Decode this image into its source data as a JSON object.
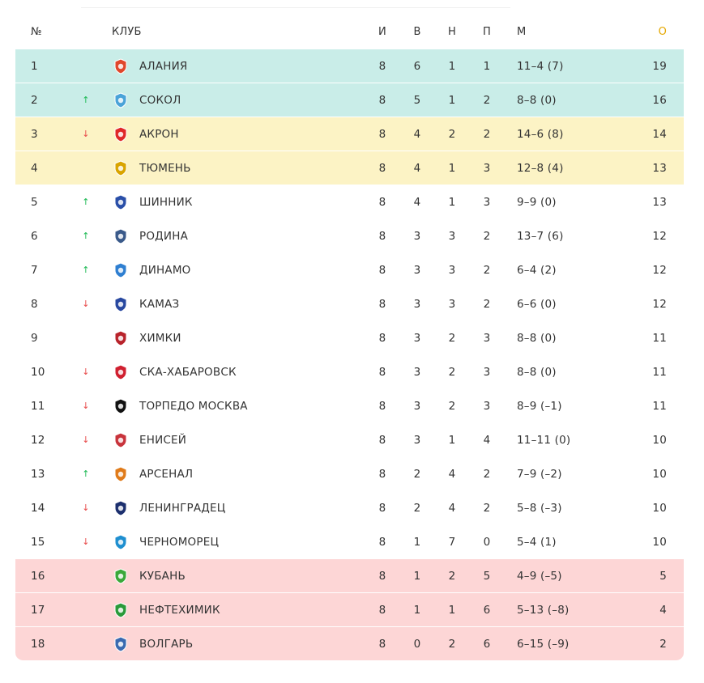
{
  "header": {
    "pos": "№",
    "club": "КЛУБ",
    "games": "И",
    "wins": "В",
    "draws": "Н",
    "losses": "П",
    "goals": "М",
    "points": "О"
  },
  "rows": [
    {
      "pos": "1",
      "arrow": "",
      "club": "Алания",
      "i": "8",
      "w": "6",
      "d": "1",
      "l": "1",
      "m": "11–4 (7)",
      "pts": "19",
      "zone": "green",
      "logo": "alania-logo",
      "color": "#e0472c"
    },
    {
      "pos": "2",
      "arrow": "↑",
      "club": "Сокол",
      "i": "8",
      "w": "5",
      "d": "1",
      "l": "2",
      "m": "8–8 (0)",
      "pts": "16",
      "zone": "green",
      "logo": "sokol-logo",
      "color": "#4aa3d8"
    },
    {
      "pos": "3",
      "arrow": "↓",
      "club": "Акрон",
      "i": "8",
      "w": "4",
      "d": "2",
      "l": "2",
      "m": "14–6 (8)",
      "pts": "14",
      "zone": "yellow",
      "logo": "akron-logo",
      "color": "#e02828"
    },
    {
      "pos": "4",
      "arrow": "",
      "club": "Тюмень",
      "i": "8",
      "w": "4",
      "d": "1",
      "l": "3",
      "m": "12–8 (4)",
      "pts": "13",
      "zone": "yellow",
      "logo": "tyumen-logo",
      "color": "#d9a400"
    },
    {
      "pos": "5",
      "arrow": "↑",
      "club": "Шинник",
      "i": "8",
      "w": "4",
      "d": "1",
      "l": "3",
      "m": "9–9 (0)",
      "pts": "13",
      "zone": "",
      "logo": "shinnik-logo",
      "color": "#2a4fa8"
    },
    {
      "pos": "6",
      "arrow": "↑",
      "club": "Родина",
      "i": "8",
      "w": "3",
      "d": "3",
      "l": "2",
      "m": "13–7 (6)",
      "pts": "12",
      "zone": "",
      "logo": "rodina-logo",
      "color": "#3a5a8a"
    },
    {
      "pos": "7",
      "arrow": "↑",
      "club": "Динамо",
      "i": "8",
      "w": "3",
      "d": "3",
      "l": "2",
      "m": "6–4 (2)",
      "pts": "12",
      "zone": "",
      "logo": "dinamo-logo",
      "color": "#2f7fd1"
    },
    {
      "pos": "8",
      "arrow": "↓",
      "club": "Камаз",
      "i": "8",
      "w": "3",
      "d": "3",
      "l": "2",
      "m": "6–6 (0)",
      "pts": "12",
      "zone": "",
      "logo": "kamaz-logo",
      "color": "#2848a0"
    },
    {
      "pos": "9",
      "arrow": "",
      "club": "Химки",
      "i": "8",
      "w": "3",
      "d": "2",
      "l": "3",
      "m": "8–8 (0)",
      "pts": "11",
      "zone": "",
      "logo": "khimki-logo",
      "color": "#b8232b"
    },
    {
      "pos": "10",
      "arrow": "↓",
      "club": "СКА-Хабаровск",
      "i": "8",
      "w": "3",
      "d": "2",
      "l": "3",
      "m": "8–8 (0)",
      "pts": "11",
      "zone": "",
      "logo": "ska-logo",
      "color": "#d02030"
    },
    {
      "pos": "11",
      "arrow": "↓",
      "club": "Торпедо Москва",
      "i": "8",
      "w": "3",
      "d": "2",
      "l": "3",
      "m": "8–9 (–1)",
      "pts": "11",
      "zone": "",
      "logo": "torpedo-logo",
      "color": "#111111"
    },
    {
      "pos": "12",
      "arrow": "↓",
      "club": "Енисей",
      "i": "8",
      "w": "3",
      "d": "1",
      "l": "4",
      "m": "11–11 (0)",
      "pts": "10",
      "zone": "",
      "logo": "yenisey-logo",
      "color": "#c8343c"
    },
    {
      "pos": "13",
      "arrow": "↑",
      "club": "Арсенал",
      "i": "8",
      "w": "2",
      "d": "4",
      "l": "2",
      "m": "7–9 (–2)",
      "pts": "10",
      "zone": "",
      "logo": "arsenal-logo",
      "color": "#e07b1a"
    },
    {
      "pos": "14",
      "arrow": "↓",
      "club": "Ленинградец",
      "i": "8",
      "w": "2",
      "d": "4",
      "l": "2",
      "m": "5–8 (–3)",
      "pts": "10",
      "zone": "",
      "logo": "leningradets-logo",
      "color": "#1c2f6e"
    },
    {
      "pos": "15",
      "arrow": "↓",
      "club": "Черноморец",
      "i": "8",
      "w": "1",
      "d": "7",
      "l": "0",
      "m": "5–4 (1)",
      "pts": "10",
      "zone": "",
      "logo": "chernomorets-logo",
      "color": "#1f8fd0"
    },
    {
      "pos": "16",
      "arrow": "",
      "club": "Кубань",
      "i": "8",
      "w": "1",
      "d": "2",
      "l": "5",
      "m": "4–9 (–5)",
      "pts": "5",
      "zone": "red",
      "logo": "kuban-logo",
      "color": "#3aa83a"
    },
    {
      "pos": "17",
      "arrow": "",
      "club": "Нефтехимик",
      "i": "8",
      "w": "1",
      "d": "1",
      "l": "6",
      "m": "5–13 (–8)",
      "pts": "4",
      "zone": "red",
      "logo": "neftekhimik-logo",
      "color": "#2a9a3a"
    },
    {
      "pos": "18",
      "arrow": "",
      "club": "Волгарь",
      "i": "8",
      "w": "0",
      "d": "2",
      "l": "6",
      "m": "6–15 (–9)",
      "pts": "2",
      "zone": "red",
      "logo": "volgar-logo",
      "color": "#3a6ab0"
    }
  ]
}
